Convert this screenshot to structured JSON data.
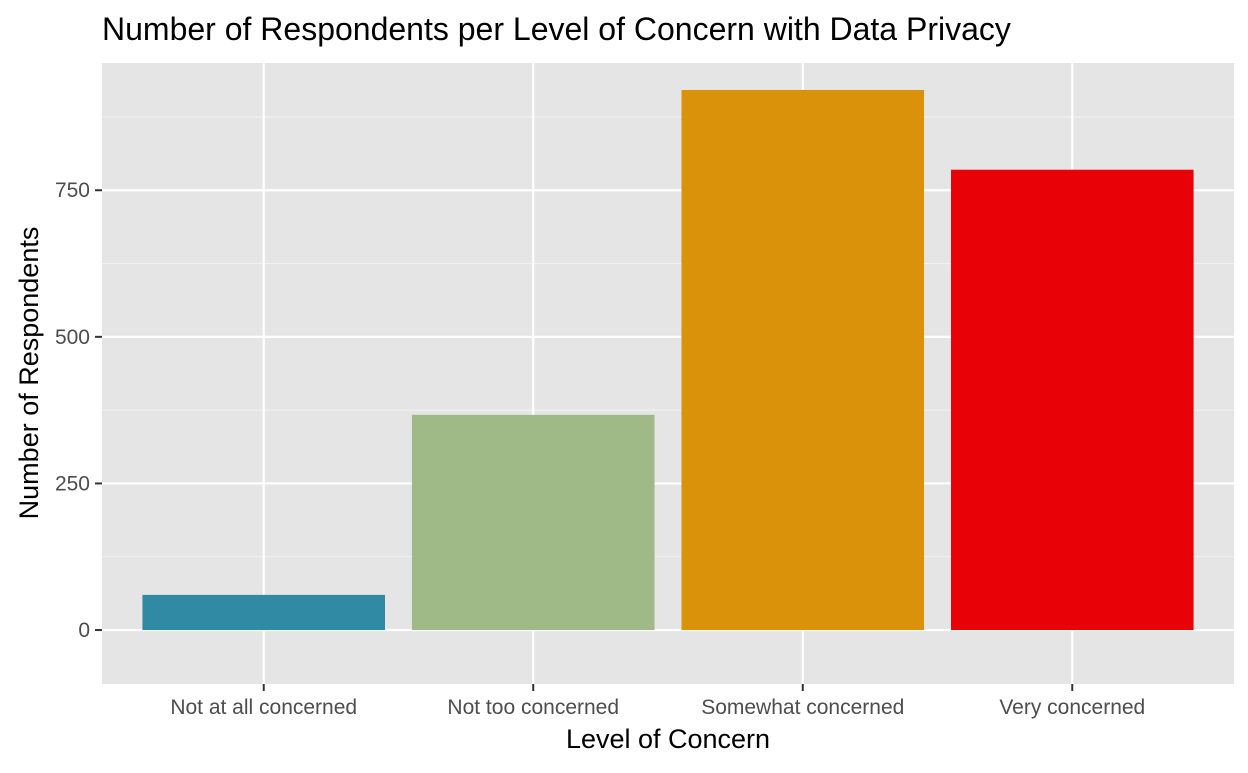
{
  "chart_data": {
    "type": "bar",
    "title": "Number of Respondents per Level of Concern with Data Privacy",
    "xlabel": "Level of Concern",
    "ylabel": "Number of Respondents",
    "categories": [
      "Not at all concerned",
      "Not too concerned",
      "Somewhat concerned",
      "Very concerned"
    ],
    "values": [
      60,
      367,
      921,
      785
    ],
    "colors": [
      "#318AA3",
      "#9FB987",
      "#DB920B",
      "#E80107"
    ],
    "ylim": [
      -92,
      967
    ],
    "yticks": [
      0,
      250,
      500,
      750
    ],
    "ytick_labels": [
      "0",
      "250",
      "500",
      "750"
    ],
    "grid": true,
    "legend": "none",
    "panel_background": "#E5E5E5"
  }
}
